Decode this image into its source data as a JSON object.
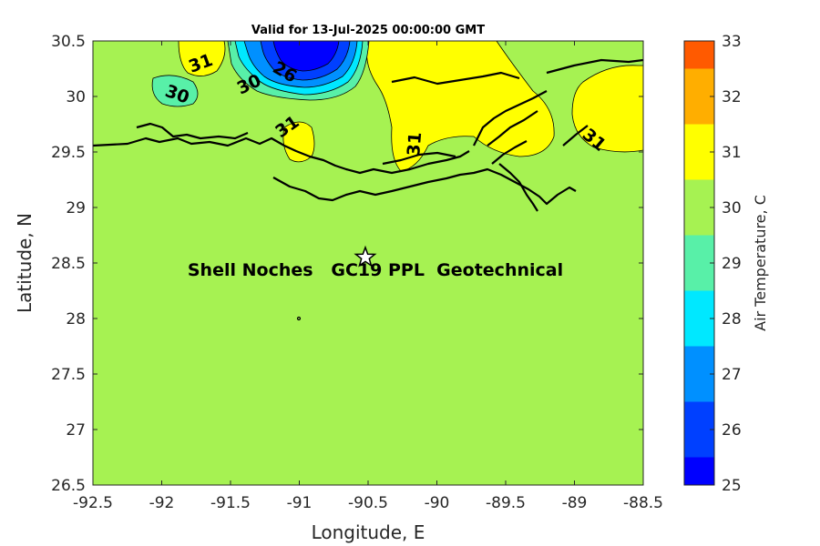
{
  "map": {
    "title": "Valid for 13-Jul-2025 00:00:00 GMT",
    "xlabel": "Longitude, E",
    "ylabel": "Latitude, N",
    "xlim": [
      -92.5,
      -88.5
    ],
    "ylim": [
      26.5,
      30.5
    ],
    "xticks": [
      "-92.5",
      "-92",
      "-91.5",
      "-91",
      "-90.5",
      "-90",
      "-89.5",
      "-89",
      "-88.5"
    ],
    "yticks": [
      "30.5",
      "30",
      "29.5",
      "29",
      "28.5",
      "28",
      "27.5",
      "27",
      "26.5"
    ],
    "annotation": "Shell Noches   GC19 PPL  Geotechnical",
    "site_marker": {
      "lon": -90.52,
      "lat": 28.55,
      "symbol": "star"
    },
    "contour_labels": [
      "31",
      "30",
      "30",
      "26",
      "31",
      "31",
      "31"
    ],
    "background_field_color": "#a6f252"
  },
  "colorbar": {
    "label": "Air Temperature, C",
    "ticks": [
      "33",
      "32",
      "31",
      "30",
      "29",
      "28",
      "27",
      "26",
      "25"
    ],
    "bands": [
      {
        "from": 25,
        "to": 25.5,
        "color": "#0000ff"
      },
      {
        "from": 25.5,
        "to": 26.5,
        "color": "#0040ff"
      },
      {
        "from": 26.5,
        "to": 27.5,
        "color": "#0090ff"
      },
      {
        "from": 27.5,
        "to": 28.5,
        "color": "#00e8ff"
      },
      {
        "from": 28.5,
        "to": 29.5,
        "color": "#58f0a8"
      },
      {
        "from": 29.5,
        "to": 30.5,
        "color": "#a6f252"
      },
      {
        "from": 30.5,
        "to": 31.5,
        "color": "#ffff00"
      },
      {
        "from": 31.5,
        "to": 32.5,
        "color": "#ffae00"
      },
      {
        "from": 32.5,
        "to": 33,
        "color": "#ff5a00"
      }
    ]
  }
}
